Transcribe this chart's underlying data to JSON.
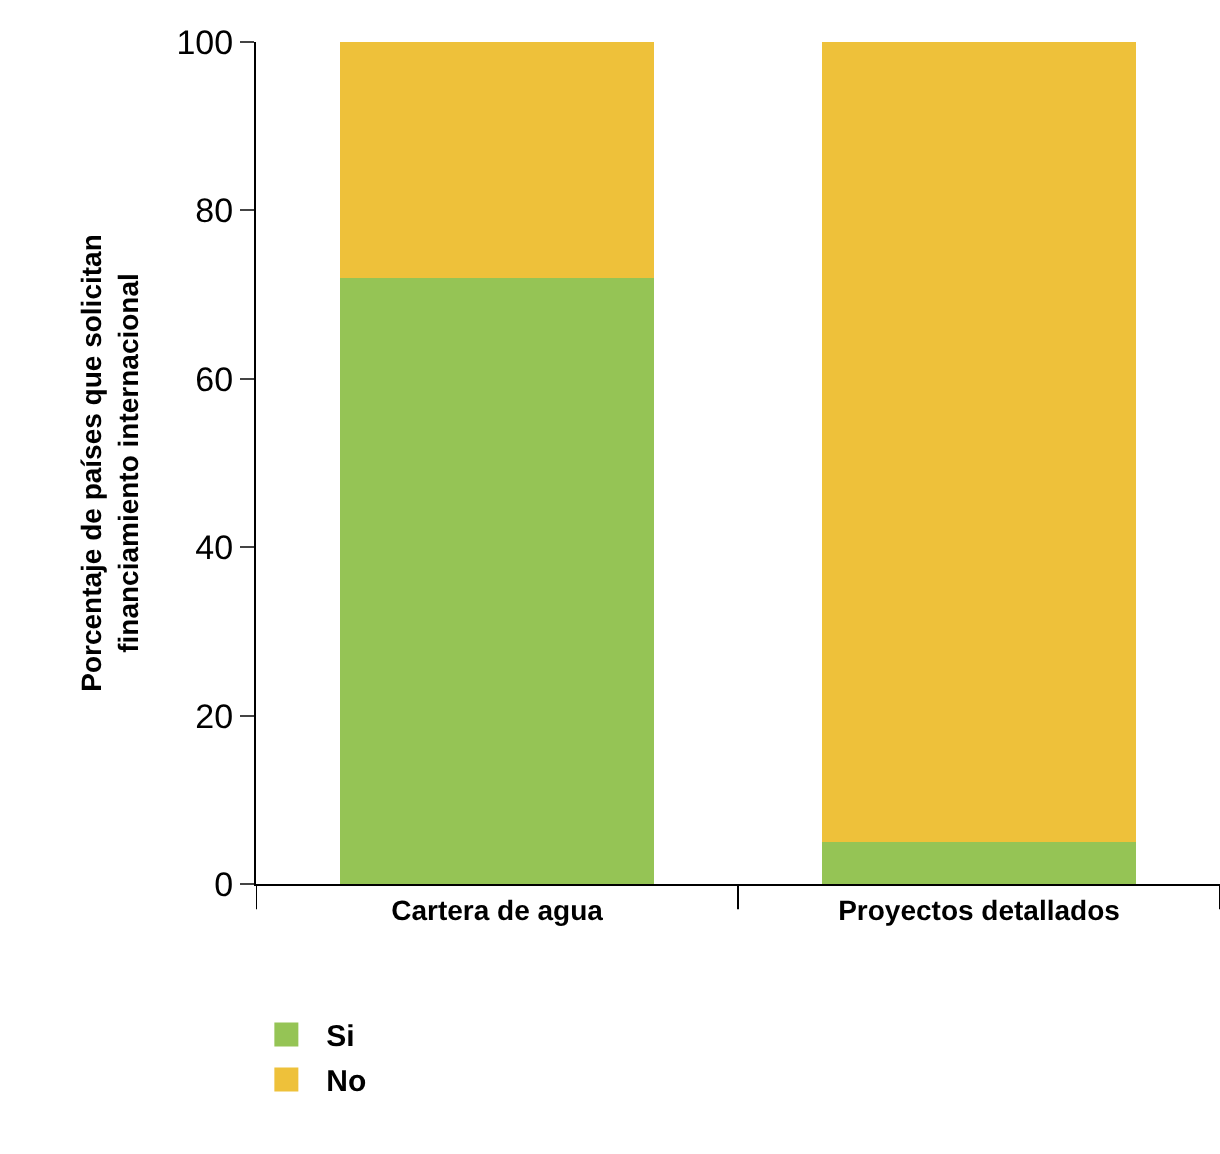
{
  "chart_data": {
    "type": "bar",
    "stacked": true,
    "ylabel": "Porcentaje de países que solicitan\nfinanciamiento internacional",
    "categories": [
      "Cartera de agua",
      "Proyectos detallados"
    ],
    "series": [
      {
        "name": "Si",
        "color": "#95c455",
        "values": [
          72,
          5
        ]
      },
      {
        "name": "No",
        "color": "#eec13a",
        "values": [
          28,
          95
        ]
      }
    ],
    "ylim": [
      0,
      100
    ],
    "yticks": [
      0,
      20,
      40,
      60,
      80,
      100
    ],
    "legend": "bottom left"
  }
}
